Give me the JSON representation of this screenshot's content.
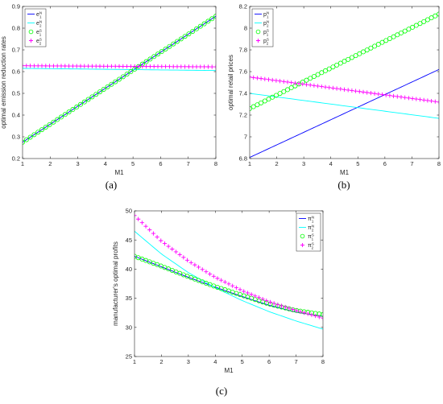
{
  "chart_data": [
    {
      "type": "line",
      "caption": "(a)",
      "xlabel": "M1",
      "ylabel": "optimal emission reduction rates",
      "xlim": [
        1,
        8
      ],
      "ylim": [
        0.2,
        0.9
      ],
      "xticks": [
        1,
        2,
        3,
        4,
        5,
        6,
        7,
        8
      ],
      "yticks": [
        0.2,
        0.3,
        0.4,
        0.5,
        0.6,
        0.7,
        0.8,
        0.9
      ],
      "yticklabels": [
        "0.2",
        "0.3",
        "0.4",
        "0.5",
        "0.6",
        "0.7",
        "0.8",
        "0.9"
      ],
      "legend_position": "top-left",
      "series": [
        {
          "name": "e1N",
          "label": {
            "base": "e",
            "sup": "N",
            "sub": "1"
          },
          "style": "line",
          "color": "#0000ff",
          "x": [
            1,
            8
          ],
          "y": [
            0.275,
            0.855
          ]
        },
        {
          "name": "e2N",
          "label": {
            "base": "e",
            "sup": "N",
            "sub": "2"
          },
          "style": "line",
          "color": "#00ffff",
          "x": [
            1,
            8
          ],
          "y": [
            0.615,
            0.605
          ]
        },
        {
          "name": "e1S",
          "label": {
            "base": "e",
            "sup": "S",
            "sub": "1"
          },
          "style": "circle",
          "color": "#00ff00",
          "x": [
            1,
            8
          ],
          "y": [
            0.275,
            0.855
          ]
        },
        {
          "name": "e2S",
          "label": {
            "base": "e",
            "sup": "S",
            "sub": "2"
          },
          "style": "plus",
          "color": "#ff00ff",
          "x": [
            1,
            8
          ],
          "y": [
            0.627,
            0.622
          ]
        }
      ]
    },
    {
      "type": "line",
      "caption": "(b)",
      "xlabel": "M1",
      "ylabel": "optimal retail prices",
      "xlim": [
        1,
        8
      ],
      "ylim": [
        6.8,
        8.2
      ],
      "xticks": [
        1,
        2,
        3,
        4,
        5,
        6,
        7,
        8
      ],
      "yticks": [
        6.8,
        7.0,
        7.2,
        7.4,
        7.6,
        7.8,
        8.0,
        8.2
      ],
      "yticklabels": [
        "6.8",
        "7",
        "7.2",
        "7.4",
        "7.6",
        "7.8",
        "8",
        "8.2"
      ],
      "legend_position": "top-left",
      "series": [
        {
          "name": "p1N",
          "label": {
            "base": "p",
            "sup": "N",
            "sub": "1"
          },
          "style": "line",
          "color": "#0000ff",
          "x": [
            1,
            8
          ],
          "y": [
            6.81,
            7.62
          ]
        },
        {
          "name": "p2N",
          "label": {
            "base": "p",
            "sup": "N",
            "sub": "2"
          },
          "style": "line",
          "color": "#00ffff",
          "x": [
            1,
            8
          ],
          "y": [
            7.4,
            7.17
          ]
        },
        {
          "name": "p1S",
          "label": {
            "base": "p",
            "sup": "S",
            "sub": "1"
          },
          "style": "circle",
          "color": "#00ff00",
          "x": [
            1,
            8
          ],
          "y": [
            7.26,
            8.13
          ]
        },
        {
          "name": "p2S",
          "label": {
            "base": "p",
            "sup": "S",
            "sub": "2"
          },
          "style": "plus",
          "color": "#ff00ff",
          "x": [
            1,
            8
          ],
          "y": [
            7.55,
            7.32
          ]
        }
      ]
    },
    {
      "type": "line",
      "caption": "(c)",
      "xlabel": "M1",
      "ylabel": "manufacturer's optimal profits",
      "xlim": [
        1,
        8
      ],
      "ylim": [
        25,
        50
      ],
      "xticks": [
        1,
        2,
        3,
        4,
        5,
        6,
        7,
        8
      ],
      "yticks": [
        25,
        30,
        35,
        40,
        45,
        50
      ],
      "yticklabels": [
        "25",
        "30",
        "35",
        "40",
        "45",
        "50"
      ],
      "legend_position": "top-right",
      "series": [
        {
          "name": "π1N",
          "label": {
            "base": "π",
            "sup": "N",
            "sub": "1"
          },
          "style": "line",
          "color": "#0000ff",
          "x": [
            1,
            2,
            3,
            4,
            5,
            6,
            7,
            8
          ],
          "y": [
            42.2,
            40.4,
            38.6,
            36.9,
            35.3,
            33.8,
            32.6,
            31.9
          ]
        },
        {
          "name": "π2N",
          "label": {
            "base": "π",
            "sup": "N",
            "sub": "2"
          },
          "style": "line",
          "color": "#00ffff",
          "x": [
            1,
            2,
            3,
            4,
            5,
            6,
            7,
            8
          ],
          "y": [
            46.5,
            42.6,
            39.4,
            36.8,
            34.6,
            32.7,
            31.1,
            29.7
          ]
        },
        {
          "name": "π1S",
          "label": {
            "base": "π",
            "sup": "S",
            "sub": "1"
          },
          "style": "circle",
          "color": "#00ff00",
          "x": [
            1,
            2,
            3,
            4,
            5,
            6,
            7,
            8
          ],
          "y": [
            42.2,
            40.5,
            38.7,
            37.0,
            35.5,
            34.0,
            32.9,
            32.2
          ]
        },
        {
          "name": "π2S",
          "label": {
            "base": "π",
            "sup": "S",
            "sub": "2"
          },
          "style": "plus",
          "color": "#ff00ff",
          "x": [
            1,
            2,
            3,
            4,
            5,
            6,
            7,
            8
          ],
          "y": [
            49.2,
            44.8,
            41.4,
            38.6,
            36.3,
            34.4,
            32.9,
            31.6
          ]
        }
      ]
    }
  ]
}
